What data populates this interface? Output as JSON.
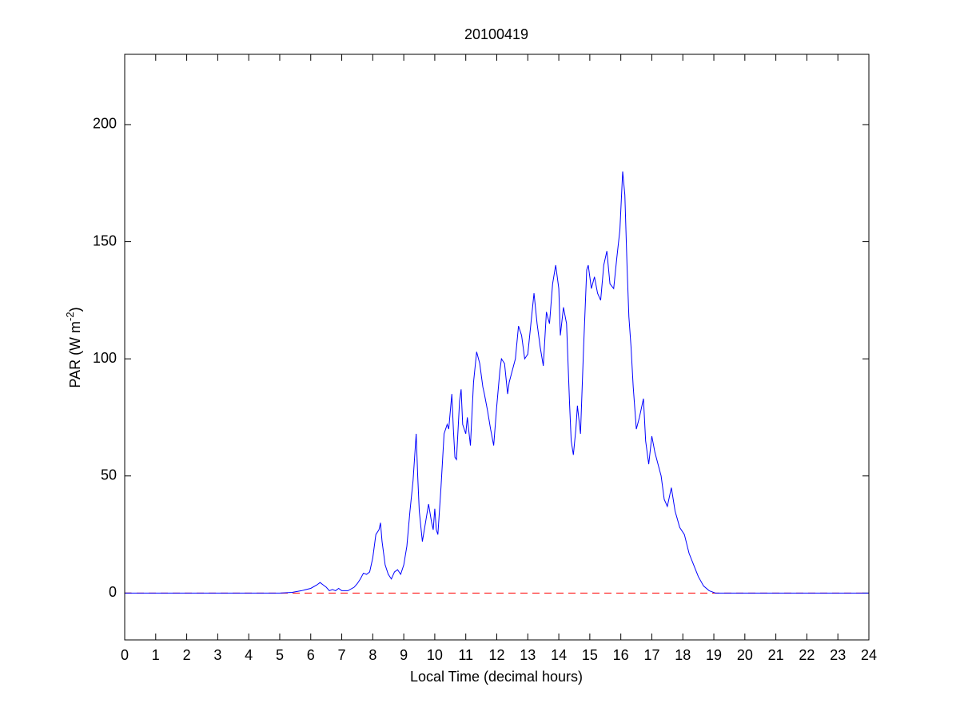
{
  "chart_data": {
    "type": "line",
    "title": "20100419",
    "xlabel": "Local Time (decimal hours)",
    "ylabel_parts": [
      "PAR (W m",
      "-2",
      ")"
    ],
    "x": [
      0,
      5,
      5.4,
      5.7,
      6.0,
      6.2,
      6.3,
      6.4,
      6.5,
      6.6,
      6.7,
      6.8,
      6.9,
      7.0,
      7.2,
      7.4,
      7.5,
      7.6,
      7.7,
      7.8,
      7.9,
      8.0,
      8.1,
      8.2,
      8.25,
      8.3,
      8.4,
      8.5,
      8.6,
      8.7,
      8.8,
      8.9,
      9.0,
      9.1,
      9.2,
      9.3,
      9.4,
      9.45,
      9.5,
      9.6,
      9.7,
      9.8,
      9.9,
      9.95,
      10.0,
      10.05,
      10.1,
      10.2,
      10.3,
      10.4,
      10.45,
      10.55,
      10.6,
      10.65,
      10.7,
      10.8,
      10.85,
      10.9,
      11.0,
      11.05,
      11.15,
      11.25,
      11.35,
      11.45,
      11.55,
      11.6,
      11.7,
      11.8,
      11.9,
      12.0,
      12.1,
      12.15,
      12.25,
      12.35,
      12.4,
      12.5,
      12.6,
      12.7,
      12.8,
      12.9,
      13.0,
      13.1,
      13.2,
      13.3,
      13.4,
      13.5,
      13.6,
      13.7,
      13.8,
      13.9,
      14.0,
      14.05,
      14.15,
      14.25,
      14.35,
      14.4,
      14.47,
      14.55,
      14.6,
      14.7,
      14.8,
      14.9,
      14.95,
      15.05,
      15.15,
      15.25,
      15.35,
      15.45,
      15.55,
      15.65,
      15.77,
      15.87,
      15.97,
      16.06,
      16.13,
      16.2,
      16.26,
      16.33,
      16.4,
      16.5,
      16.6,
      16.73,
      16.8,
      16.9,
      17.0,
      17.1,
      17.2,
      17.3,
      17.4,
      17.5,
      17.63,
      17.75,
      17.9,
      18.05,
      18.2,
      18.35,
      18.5,
      18.67,
      18.85,
      19.05,
      24
    ],
    "series": [
      {
        "color": "#0000ff",
        "values": [
          0,
          0,
          0.3,
          1,
          2,
          3.5,
          4.5,
          3.5,
          2.5,
          1,
          1.5,
          1,
          2,
          1,
          1,
          2.5,
          4,
          6,
          8.5,
          8,
          9,
          15,
          25,
          27,
          30,
          22,
          12,
          8,
          6,
          9,
          10,
          8,
          12,
          20,
          35,
          48,
          68,
          50,
          35,
          22,
          30,
          38,
          30,
          27,
          36,
          27,
          25,
          45,
          68,
          72,
          70,
          85,
          70,
          58,
          57,
          82,
          87,
          72,
          68,
          75,
          63,
          90,
          103,
          98,
          88,
          85,
          78,
          70,
          63,
          80,
          95,
          100,
          98,
          85,
          90,
          95,
          100,
          114,
          110,
          100,
          102,
          115,
          128,
          115,
          105,
          97,
          120,
          115,
          132,
          140,
          130,
          110,
          122,
          115,
          80,
          65,
          59,
          70,
          80,
          68,
          105,
          138,
          140,
          130,
          135,
          128,
          125,
          140,
          146,
          132,
          130,
          143,
          155,
          180,
          170,
          140,
          118,
          105,
          88,
          70,
          75,
          83,
          65,
          55,
          67,
          60,
          55,
          50,
          40,
          37,
          45,
          35,
          28,
          25,
          17,
          12,
          7,
          3,
          1,
          0,
          0
        ]
      }
    ],
    "reference_line": {
      "value": 0,
      "color": "#ff0000",
      "dashed": true
    },
    "xlim": [
      0,
      24
    ],
    "xticks": [
      0,
      1,
      2,
      3,
      4,
      5,
      6,
      7,
      8,
      9,
      10,
      11,
      12,
      13,
      14,
      15,
      16,
      17,
      18,
      19,
      20,
      21,
      22,
      23,
      24
    ],
    "ylim": [
      -20,
      230
    ],
    "yticks": [
      0,
      50,
      100,
      150,
      200
    ],
    "grid": false
  }
}
